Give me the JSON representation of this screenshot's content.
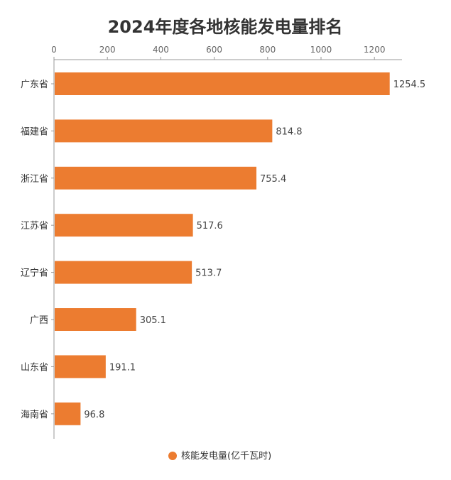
{
  "chart_data": {
    "type": "bar",
    "orientation": "horizontal",
    "title": "2024年度各地核能发电量排名",
    "categories": [
      "广东省",
      "福建省",
      "浙江省",
      "江苏省",
      "辽宁省",
      "广西",
      "山东省",
      "海南省"
    ],
    "series": [
      {
        "name": "核能发电量(亿千瓦时)",
        "values": [
          1254.5,
          814.8,
          755.4,
          517.6,
          513.7,
          305.1,
          191.1,
          96.8
        ]
      }
    ],
    "data_labels": [
      "1254.5",
      "814.8",
      "755.4",
      "517.6",
      "513.7",
      "305.1",
      "191.1",
      "96.8"
    ],
    "xticks": [
      "0",
      "200",
      "400",
      "600",
      "800",
      "1000",
      "1200"
    ],
    "xlim": [
      0,
      1300
    ],
    "x_axis_position": "top",
    "grid": false,
    "legend_position": "bottom-center",
    "colors": {
      "bar": "#ec7c30",
      "axis": "#999999",
      "text": "#333333"
    }
  }
}
